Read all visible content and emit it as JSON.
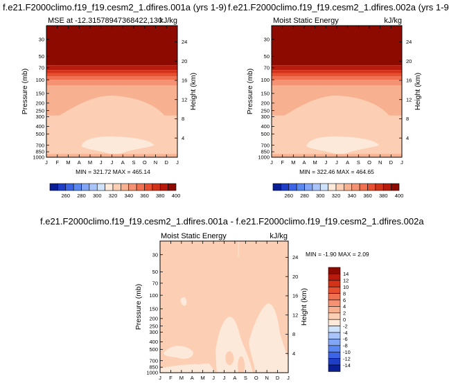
{
  "palette": {
    "mse_colors": [
      "#0a1e96",
      "#1e3ec8",
      "#3c64e6",
      "#5a87f0",
      "#82a5f5",
      "#a9c4fa",
      "#cfe2fc",
      "#fde9d9",
      "#fccfb4",
      "#f8b190",
      "#f59273",
      "#f0704f",
      "#e65030",
      "#d23218",
      "#b81b0b",
      "#8c0a00"
    ],
    "diff_colors": [
      "#0a1e96",
      "#1e3ec8",
      "#3c64e6",
      "#5a87f0",
      "#82a5f5",
      "#a9c4fa",
      "#cfe2fc",
      "#fde9d9",
      "#fccfb4",
      "#f8b190",
      "#f59273",
      "#f0704f",
      "#e65030",
      "#d23218",
      "#b81b0b",
      "#8c0a00"
    ]
  },
  "axes": {
    "months": [
      "J",
      "F",
      "M",
      "A",
      "M",
      "J",
      "J",
      "A",
      "S",
      "O",
      "N",
      "D",
      "J"
    ],
    "pressure_labels": [
      "30",
      "50",
      "70",
      "100",
      "150",
      "200",
      "250",
      "300",
      "400",
      "500",
      "700",
      "850",
      "1000"
    ],
    "pressure_values": [
      30,
      50,
      70,
      100,
      150,
      200,
      250,
      300,
      400,
      500,
      700,
      850,
      1000
    ],
    "height_labels": [
      "4",
      "8",
      "12",
      "16",
      "20",
      "24"
    ],
    "height_values": [
      4,
      8,
      12,
      16,
      20,
      24
    ],
    "ylabel": "Pressure (mb)",
    "ylabel_right": "Height (km)"
  },
  "panel1": {
    "title": "f.e21.F2000climo.f19_f19.cesm2_1.dfires.001a (yrs 1-9)",
    "left_label": "MSE at -12.31578947368422,130",
    "units": "kJ/kg",
    "minmax": "MIN = 321.72 MAX = 465.14"
  },
  "panel2": {
    "title": "f.e21.F2000climo.f19_f19.cesm2_1.dfires.002a (yrs 1-9)",
    "left_label": "Moist Static Energy",
    "units": "kJ/kg",
    "minmax": "MIN = 322.46 MAX = 464.65"
  },
  "colorbar_top": {
    "labels": [
      "260",
      "280",
      "300",
      "320",
      "340",
      "360",
      "380",
      "400"
    ]
  },
  "panel3": {
    "title": "f.e21.F2000climo.f19_f19.cesm2_1.dfires.001a - f.e21.F2000climo.f19_f19.cesm2_1.dfires.002a",
    "left_label": "Moist Static Energy",
    "units": "kJ/kg",
    "minmax": "MIN =  -1.90 MAX =   2.09",
    "colorbar_labels": [
      "14",
      "12",
      "10",
      "8",
      "6",
      "4",
      "2",
      "0",
      "-2",
      "-4",
      "-6",
      "-8",
      "-10",
      "-12",
      "-14"
    ]
  },
  "chart_data": [
    {
      "type": "heatmap",
      "title": "f.e21.F2000climo.f19_f19.cesm2_1.dfires.001a (yrs 1-9)",
      "variable": "MSE at -12.31578947368422,130",
      "units": "kJ/kg",
      "x": [
        "J",
        "F",
        "M",
        "A",
        "M",
        "J",
        "J",
        "A",
        "S",
        "O",
        "N",
        "D",
        "J"
      ],
      "y_pressure_mb": [
        30,
        50,
        70,
        100,
        150,
        200,
        250,
        300,
        400,
        500,
        700,
        850,
        1000
      ],
      "ylabel": "Pressure (mb)",
      "ylabel_right": "Height (km)",
      "min": 321.72,
      "max": 465.14,
      "levels": [
        260,
        270,
        280,
        290,
        300,
        310,
        320,
        330,
        340,
        350,
        360,
        370,
        380,
        390,
        400
      ],
      "bands_by_pressure": [
        {
          "p_top": 20,
          "p_bot": 65,
          "value": 405
        },
        {
          "p_top": 65,
          "p_bot": 75,
          "value": 395
        },
        {
          "p_top": 75,
          "p_bot": 82,
          "value": 385
        },
        {
          "p_top": 82,
          "p_bot": 90,
          "value": 375
        },
        {
          "p_top": 90,
          "p_bot": 100,
          "value": 365
        },
        {
          "p_top": 100,
          "p_bot": 118,
          "value": 355
        },
        {
          "p_top": 118,
          "p_bot": 290,
          "value": 345
        },
        {
          "p_top": 290,
          "p_bot": 1000,
          "value": 335
        }
      ],
      "features": [
        {
          "region": "mid-troposphere low, Apr–Oct, 560–1000 mb",
          "value": 325
        },
        {
          "region": "near-surface layer, 920–1000 mb",
          "value": 345
        }
      ]
    },
    {
      "type": "heatmap",
      "title": "f.e21.F2000climo.f19_f19.cesm2_1.dfires.002a (yrs 1-9)",
      "variable": "Moist Static Energy",
      "units": "kJ/kg",
      "x": [
        "J",
        "F",
        "M",
        "A",
        "M",
        "J",
        "J",
        "A",
        "S",
        "O",
        "N",
        "D",
        "J"
      ],
      "y_pressure_mb": [
        30,
        50,
        70,
        100,
        150,
        200,
        250,
        300,
        400,
        500,
        700,
        850,
        1000
      ],
      "ylabel": "Pressure (mb)",
      "ylabel_right": "Height (km)",
      "min": 322.46,
      "max": 464.65,
      "levels": [
        260,
        270,
        280,
        290,
        300,
        310,
        320,
        330,
        340,
        350,
        360,
        370,
        380,
        390,
        400
      ],
      "bands_by_pressure": [
        {
          "p_top": 20,
          "p_bot": 65,
          "value": 405
        },
        {
          "p_top": 65,
          "p_bot": 75,
          "value": 395
        },
        {
          "p_top": 75,
          "p_bot": 82,
          "value": 385
        },
        {
          "p_top": 82,
          "p_bot": 90,
          "value": 375
        },
        {
          "p_top": 90,
          "p_bot": 100,
          "value": 365
        },
        {
          "p_top": 100,
          "p_bot": 118,
          "value": 355
        },
        {
          "p_top": 118,
          "p_bot": 290,
          "value": 345
        },
        {
          "p_top": 290,
          "p_bot": 1000,
          "value": 335
        }
      ],
      "features": [
        {
          "region": "mid-troposphere low, Apr–Oct, 560–1000 mb",
          "value": 325
        },
        {
          "region": "near-surface layer, 920–1000 mb",
          "value": 345
        }
      ]
    },
    {
      "type": "heatmap",
      "title": "f.e21.F2000climo.f19_f19.cesm2_1.dfires.001a - f.e21.F2000climo.f19_f19.cesm2_1.dfires.002a",
      "variable": "Moist Static Energy",
      "units": "kJ/kg",
      "x": [
        "J",
        "F",
        "M",
        "A",
        "M",
        "J",
        "J",
        "A",
        "S",
        "O",
        "N",
        "D",
        "J"
      ],
      "y_pressure_mb": [
        30,
        50,
        70,
        100,
        150,
        200,
        250,
        300,
        400,
        500,
        700,
        850,
        1000
      ],
      "ylabel": "Pressure (mb)",
      "ylabel_right": "Height (km)",
      "min": -1.9,
      "max": 2.09,
      "levels": [
        -14,
        -12,
        -10,
        -8,
        -6,
        -4,
        -2,
        0,
        2,
        4,
        6,
        8,
        10,
        12,
        14
      ],
      "background_value": 1,
      "features": [
        {
          "region": "negative patches (0 to -2), mainly Jun–Oct, 200–1000 mb",
          "value": -1
        }
      ]
    }
  ]
}
